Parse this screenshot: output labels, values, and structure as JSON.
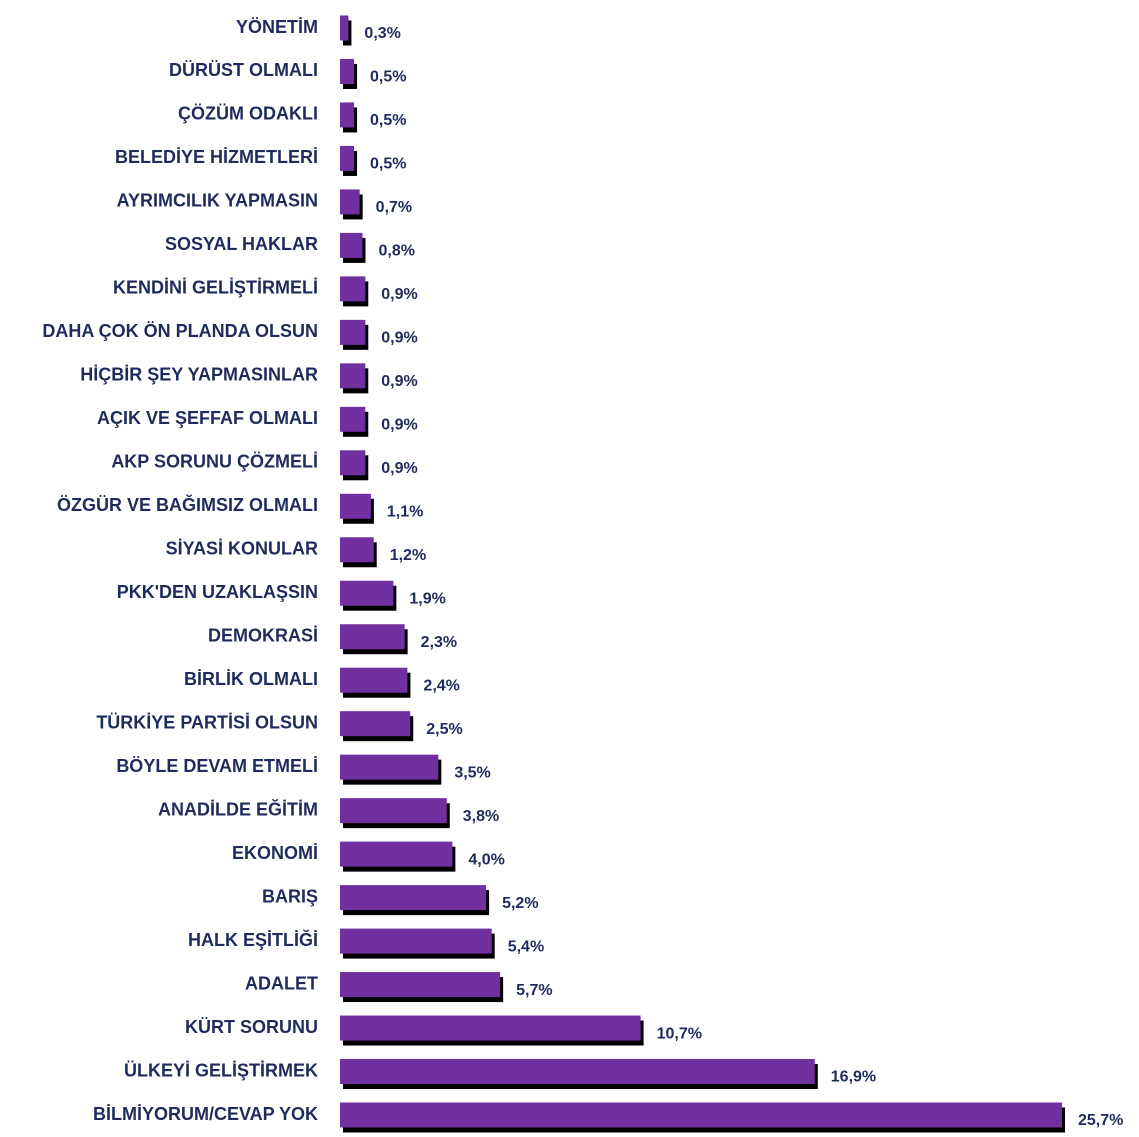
{
  "chart_data": {
    "type": "barh",
    "categories": [
      "YÖNETİM",
      "DÜRÜST OLMALI",
      "ÇÖZÜM ODAKLI",
      "BELEDİYE HİZMETLERİ",
      "AYRIMCILIK YAPMASIN",
      "SOSYAL HAKLAR",
      "KENDİNİ GELİŞTİRMELİ",
      "DAHA ÇOK ÖN PLANDA OLSUN",
      "HİÇBİR ŞEY YAPMASINLAR",
      "AÇIK VE ŞEFFAF OLMALI",
      "AKP SORUNU ÇÖZMELİ",
      "ÖZGÜR VE BAĞIMSIZ OLMALI",
      "SİYASİ KONULAR",
      "PKK'DEN UZAKLAŞSIN",
      "DEMOKRASİ",
      "BİRLİK OLMALI",
      "TÜRKİYE PARTİSİ OLSUN",
      "BÖYLE DEVAM ETMELİ",
      "ANADİLDE EĞİTİM",
      "EKONOMİ",
      "BARIŞ",
      "HALK EŞİTLİĞİ",
      "ADALET",
      "KÜRT SORUNU",
      "ÜLKEYİ GELİŞTİRMEK",
      "BİLMİYORUM/CEVAP YOK"
    ],
    "values": [
      0.3,
      0.5,
      0.5,
      0.5,
      0.7,
      0.8,
      0.9,
      0.9,
      0.9,
      0.9,
      0.9,
      1.1,
      1.2,
      1.9,
      2.3,
      2.4,
      2.5,
      3.5,
      3.8,
      4.0,
      5.2,
      5.4,
      5.7,
      10.7,
      16.9,
      25.7
    ],
    "value_labels": [
      "0,3%",
      "0,5%",
      "0,5%",
      "0,5%",
      "0,7%",
      "0,8%",
      "0,9%",
      "0,9%",
      "0,9%",
      "0,9%",
      "0,9%",
      "1,1%",
      "1,2%",
      "1,9%",
      "2,3%",
      "2,4%",
      "2,5%",
      "3,5%",
      "3,8%",
      "4,0%",
      "5,2%",
      "5,4%",
      "5,7%",
      "10,7%",
      "16,9%",
      "25,7%"
    ],
    "color": "#7030a0"
  }
}
